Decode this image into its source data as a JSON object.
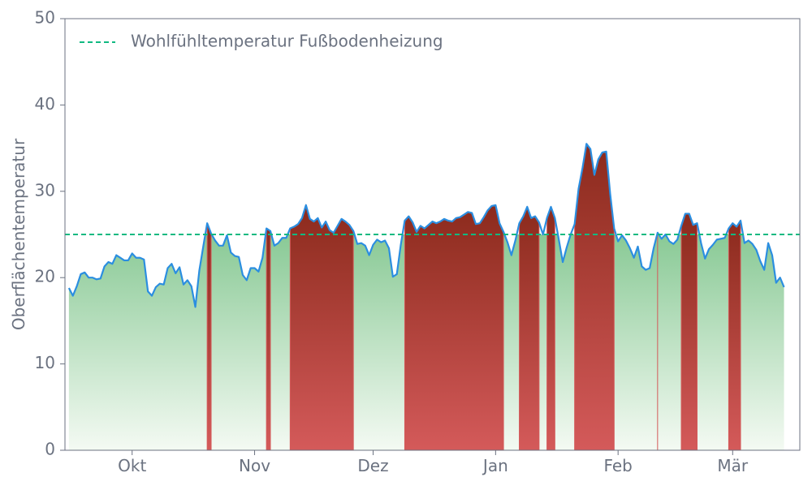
{
  "chart_data": {
    "type": "area",
    "title": "",
    "xlabel": "",
    "ylabel": "Oberflächentemperatur",
    "ylim": [
      0,
      50
    ],
    "yticks": [
      0,
      10,
      20,
      30,
      40,
      50
    ],
    "xlim": [
      "2023-09-14",
      "2024-03-18"
    ],
    "xticks": [
      {
        "date": "2023-10-01",
        "label": "Okt"
      },
      {
        "date": "2023-11-01",
        "label": "Nov"
      },
      {
        "date": "2023-12-01",
        "label": "Dez"
      },
      {
        "date": "2024-01-01",
        "label": "Jan"
      },
      {
        "date": "2024-02-01",
        "label": "Feb"
      },
      {
        "date": "2024-03-01",
        "label": "Mär"
      }
    ],
    "grid": false,
    "legend_position": "top-left",
    "threshold": {
      "name": "Wohlfühltemperatur Fußbodenheizung",
      "value": 25,
      "color": "#10b981"
    },
    "colors": {
      "line": "#2b8ee0",
      "above_fill_top": "#8b2a1c",
      "above_fill_bottom": "#d45a5a",
      "below_fill_top": "#5cb56e",
      "below_fill_bottom": "#f4faf3",
      "axis": "#6b7280"
    },
    "series": [
      {
        "start_date": "2023-09-15",
        "values": [
          18.8,
          17.9,
          19.0,
          20.4,
          20.6,
          20.0,
          20.0,
          19.8,
          19.9,
          21.3,
          21.8,
          21.6,
          22.6,
          22.3,
          22.0,
          22.0,
          22.8,
          22.3,
          22.3,
          22.1,
          18.4,
          17.9,
          18.9,
          19.3,
          19.2,
          21.1,
          21.6,
          20.5,
          21.2,
          19.2,
          19.7,
          19.0,
          16.6,
          20.8,
          23.6,
          26.3,
          25.1,
          24.3,
          23.7,
          23.7,
          24.9,
          22.9,
          22.5,
          22.4,
          20.3,
          19.7,
          21.1,
          21.1,
          20.7,
          22.3,
          25.7,
          25.4,
          23.7,
          24.0,
          24.6,
          24.6,
          25.7,
          25.9,
          26.2,
          26.9,
          28.4,
          26.8,
          26.5,
          26.9,
          25.8,
          26.5,
          25.5,
          25.2,
          26.0,
          26.8,
          26.5,
          26.1,
          25.4,
          23.9,
          24.0,
          23.7,
          22.6,
          23.8,
          24.4,
          24.1,
          24.3,
          23.4,
          20.1,
          20.4,
          23.8,
          26.6,
          27.1,
          26.4,
          25.3,
          26.0,
          25.7,
          26.1,
          26.5,
          26.3,
          26.5,
          26.8,
          26.6,
          26.5,
          26.9,
          27.0,
          27.3,
          27.6,
          27.5,
          26.2,
          26.3,
          27.0,
          27.8,
          28.3,
          28.4,
          26.3,
          25.3,
          24.1,
          22.6,
          24.3,
          26.3,
          27.1,
          28.2,
          26.9,
          27.1,
          26.4,
          25.0,
          26.9,
          28.2,
          26.9,
          24.4,
          21.8,
          23.5,
          25.0,
          26.2,
          30.3,
          32.7,
          35.5,
          34.9,
          31.9,
          33.7,
          34.5,
          34.6,
          29.7,
          25.7,
          24.2,
          24.9,
          24.3,
          23.4,
          22.3,
          23.6,
          21.3,
          20.9,
          21.1,
          23.4,
          25.2,
          24.5,
          25.0,
          24.2,
          23.9,
          24.4,
          26.0,
          27.4,
          27.4,
          26.1,
          26.3,
          24.0,
          22.2,
          23.3,
          23.8,
          24.4,
          24.5,
          24.6,
          25.7,
          26.3,
          25.9,
          26.6,
          24.0,
          24.3,
          23.9,
          23.2,
          21.9,
          20.9,
          24.0,
          22.6,
          19.4,
          20.0,
          18.9
        ]
      }
    ]
  }
}
